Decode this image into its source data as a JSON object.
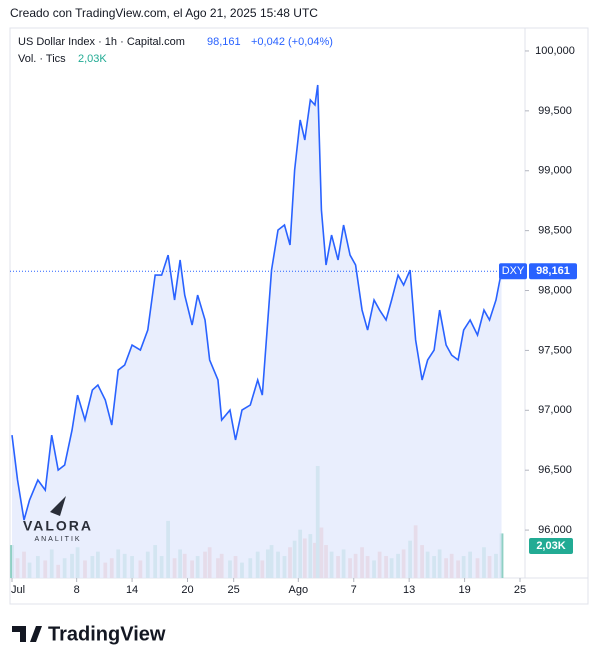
{
  "header": {
    "credit": "Creado con TradingView.com, el Ago 21, 2025 15:48 UTC",
    "symbol": "US Dollar Index · 1h · Capital.com",
    "last": {
      "value": 98.161,
      "label": "98,161"
    },
    "change": "+0,042 (+0,04%)",
    "volume_title": "Vol. · Tics",
    "volume_last": "2,03K"
  },
  "chart_data": {
    "type": "area",
    "color": "#2962ff",
    "fill": "#e3eafd",
    "x": [
      0.0,
      0.6,
      1.3,
      1.9,
      2.8,
      3.6,
      4.3,
      5.0,
      5.7,
      6.5,
      7.1,
      7.9,
      8.7,
      9.3,
      10.1,
      10.8,
      11.5,
      12.2,
      13.0,
      13.9,
      14.7,
      15.5,
      16.2,
      16.9,
      17.6,
      18.2,
      18.7,
      19.5,
      20.1,
      20.9,
      21.4,
      22.3,
      22.7,
      23.6,
      24.2,
      24.9,
      25.8,
      26.6,
      27.1,
      27.7,
      28.1,
      28.8,
      29.5,
      30.1,
      30.6,
      31.2,
      31.7,
      32.3,
      32.8,
      33.1,
      33.5,
      34.0,
      34.6,
      35.3,
      35.9,
      36.6,
      37.2,
      37.9,
      38.5,
      39.2,
      39.8,
      40.5,
      41.1,
      41.8,
      42.4,
      43.1,
      43.7,
      44.4,
      45.0,
      45.7,
      46.3,
      47.0,
      47.6,
      48.3,
      48.9,
      49.6,
      50.4,
      51.1,
      51.7,
      52.4,
      53.0
    ],
    "series": [
      {
        "name": "DXY",
        "color": "#2962ff",
        "values": [
          96.793,
          96.418,
          96.084,
          96.251,
          96.418,
          96.334,
          96.793,
          96.501,
          96.543,
          96.835,
          97.127,
          96.919,
          97.169,
          97.211,
          97.086,
          96.877,
          97.336,
          97.378,
          97.545,
          97.503,
          97.67,
          98.129,
          98.129,
          98.296,
          97.921,
          98.255,
          97.962,
          97.712,
          97.962,
          97.754,
          97.42,
          97.253,
          96.919,
          97.002,
          96.752,
          97.002,
          97.044,
          97.253,
          97.127,
          97.754,
          98.171,
          98.505,
          98.547,
          98.38,
          99.006,
          99.424,
          99.257,
          99.591,
          99.549,
          99.716,
          98.672,
          98.213,
          98.463,
          98.255,
          98.547,
          98.296,
          98.213,
          97.837,
          97.67,
          97.921,
          97.837,
          97.754,
          97.921,
          98.129,
          98.046,
          98.171,
          97.587,
          97.253,
          97.42,
          97.503,
          97.837,
          97.545,
          97.461,
          97.42,
          97.67,
          97.754,
          97.628,
          97.837,
          97.754,
          97.921,
          98.161
        ]
      },
      {
        "name": "Vol.",
        "up_color": "#8fd0c4",
        "down_color": "#f0a4a2",
        "values": [
          1500,
          900,
          1200,
          700,
          1000,
          800,
          1300,
          600,
          900,
          1100,
          1400,
          800,
          1000,
          1200,
          700,
          900,
          1300,
          1100,
          1000,
          800,
          1200,
          1500,
          1000,
          2600,
          900,
          1300,
          1100,
          800,
          1000,
          1200,
          1400,
          900,
          1100,
          800,
          1000,
          700,
          900,
          1200,
          800,
          1300,
          1500,
          1200,
          1000,
          1400,
          1700,
          2200,
          1800,
          2000,
          1600,
          5100,
          2300,
          1500,
          1200,
          1000,
          1300,
          900,
          1100,
          1400,
          1000,
          800,
          1200,
          1000,
          900,
          1100,
          1300,
          1700,
          2400,
          1500,
          1200,
          1000,
          1300,
          900,
          1100,
          800,
          1000,
          1200,
          900,
          1400,
          1000,
          1100,
          2030
        ]
      }
    ],
    "ylim": [
      95.6,
      100.175
    ],
    "yticks": [
      {
        "value": 96,
        "label": "96,000"
      },
      {
        "value": 96.5,
        "label": "96,500"
      },
      {
        "value": 97,
        "label": "97,000"
      },
      {
        "value": 97.5,
        "label": "97,500"
      },
      {
        "value": 98,
        "label": "98,000"
      },
      {
        "value": 98.5,
        "label": "98,500"
      },
      {
        "value": 99,
        "label": "99,000"
      },
      {
        "value": 99.5,
        "label": "99,500"
      },
      {
        "value": 100,
        "label": "100,000"
      }
    ],
    "xlim": [
      0,
      55
    ],
    "xticks": [
      {
        "value": 0,
        "label": "Jul"
      },
      {
        "value": 7,
        "label": "8"
      },
      {
        "value": 13,
        "label": "14"
      },
      {
        "value": 19,
        "label": "20"
      },
      {
        "value": 24,
        "label": "25"
      },
      {
        "value": 31,
        "label": "Ago"
      },
      {
        "value": 37,
        "label": "7"
      },
      {
        "value": 43,
        "label": "13"
      },
      {
        "value": 49,
        "label": "19"
      },
      {
        "value": 55,
        "label": "25"
      }
    ],
    "price_label": "DXY"
  },
  "watermark": {
    "brand": "VALORA",
    "sub": "ANALITIK"
  },
  "footer": {
    "logo": "TradingView"
  }
}
